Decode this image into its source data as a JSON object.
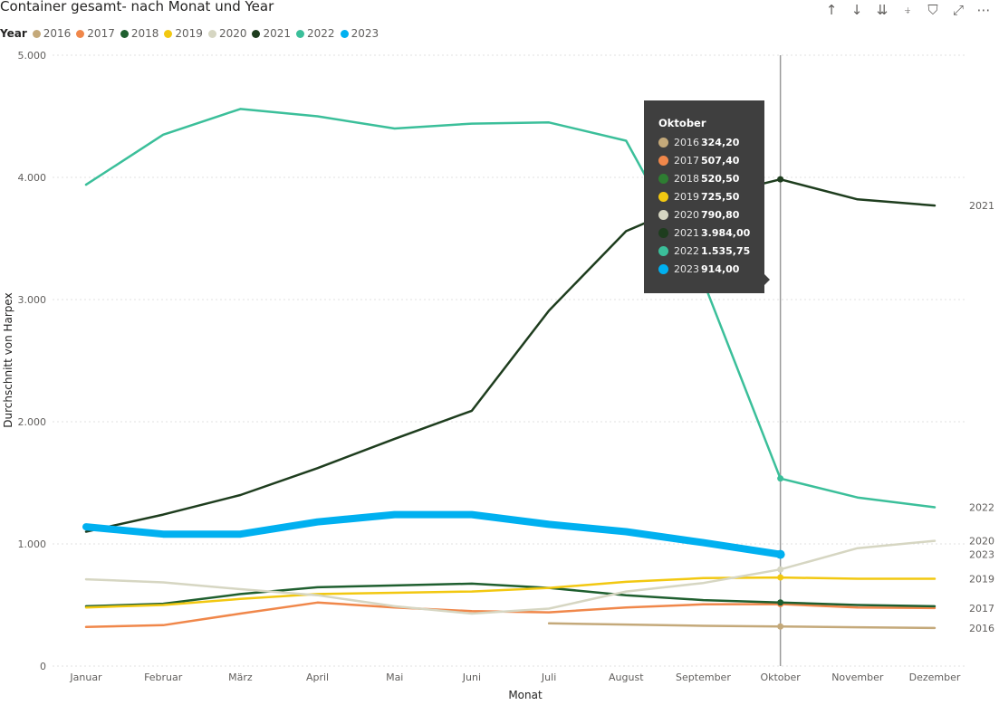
{
  "title": "Container gesamt- nach Monat und Year",
  "toolbar": {
    "icons": [
      "arrow-up-icon",
      "arrow-down-icon",
      "double-arrow-down-icon",
      "expand-hierarchy-icon",
      "filter-icon",
      "focus-mode-icon",
      "more-options-icon"
    ]
  },
  "legend": {
    "title": "Year"
  },
  "chart_data": {
    "type": "line",
    "xlabel": "Monat",
    "ylabel": "Durchschnitt von Harpex",
    "ylim": [
      0,
      5000
    ],
    "yticks": [
      0,
      1000,
      2000,
      3000,
      4000,
      5000
    ],
    "ytick_labels": [
      "0",
      "1.000",
      "2.000",
      "3.000",
      "4.000",
      "5.000"
    ],
    "grid": true,
    "legend_position": "top-left",
    "categories": [
      "Januar",
      "Februar",
      "März",
      "April",
      "Mai",
      "Juni",
      "Juli",
      "August",
      "September",
      "Oktober",
      "November",
      "Dezember"
    ],
    "series": [
      {
        "name": "2016",
        "color": "#c4a97a",
        "values": [
          null,
          null,
          null,
          null,
          null,
          null,
          350,
          340,
          330,
          324.2,
          318,
          312
        ],
        "end_label": "2016"
      },
      {
        "name": "2017",
        "color": "#f0874a",
        "values": [
          320,
          335,
          430,
          520,
          480,
          450,
          440,
          480,
          505,
          507.4,
          480,
          475
        ],
        "end_label": "2017"
      },
      {
        "name": "2018",
        "color": "#1f5f2f",
        "values": [
          490,
          510,
          590,
          645,
          660,
          675,
          640,
          580,
          540,
          520.5,
          500,
          490
        ],
        "end_label": null
      },
      {
        "name": "2019",
        "color": "#f2c811",
        "values": [
          480,
          500,
          550,
          590,
          600,
          610,
          640,
          690,
          720,
          725.5,
          715,
          715
        ],
        "end_label": "2019"
      },
      {
        "name": "2020",
        "color": "#d6d6c2",
        "values": [
          710,
          685,
          630,
          580,
          490,
          430,
          470,
          610,
          680,
          790.8,
          965,
          1025
        ],
        "end_label": "2020"
      },
      {
        "name": "2021",
        "color": "#1e3d1e",
        "values": [
          1100,
          1240,
          1400,
          1620,
          1860,
          2090,
          2910,
          3560,
          3830,
          3984,
          3820,
          3770
        ],
        "end_label": "2021"
      },
      {
        "name": "2022",
        "color": "#3bbf9a",
        "values": [
          3940,
          4350,
          4560,
          4500,
          4400,
          4440,
          4450,
          4300,
          3150,
          1535.75,
          1380,
          1300
        ],
        "end_label": "2022"
      },
      {
        "name": "2023",
        "color": "#00b0f0",
        "values": [
          1140,
          1080,
          1080,
          1180,
          1240,
          1240,
          1160,
          1100,
          1010,
          914,
          null,
          null
        ],
        "end_label": "2023"
      }
    ],
    "highlight_category": "Oktober"
  },
  "tooltip": {
    "header": "Oktober",
    "rows": [
      {
        "year": "2016",
        "value": "324,20",
        "color": "#c4a97a"
      },
      {
        "year": "2017",
        "value": "507,40",
        "color": "#f0874a"
      },
      {
        "year": "2018",
        "value": "520,50",
        "color": "#2e7d32"
      },
      {
        "year": "2019",
        "value": "725,50",
        "color": "#f2c811"
      },
      {
        "year": "2020",
        "value": "790,80",
        "color": "#d6d6c2"
      },
      {
        "year": "2021",
        "value": "3.984,00",
        "color": "#1e3d1e"
      },
      {
        "year": "2022",
        "value": "1.535,75",
        "color": "#3bbf9a"
      },
      {
        "year": "2023",
        "value": "914,00",
        "color": "#00b0f0"
      }
    ]
  }
}
